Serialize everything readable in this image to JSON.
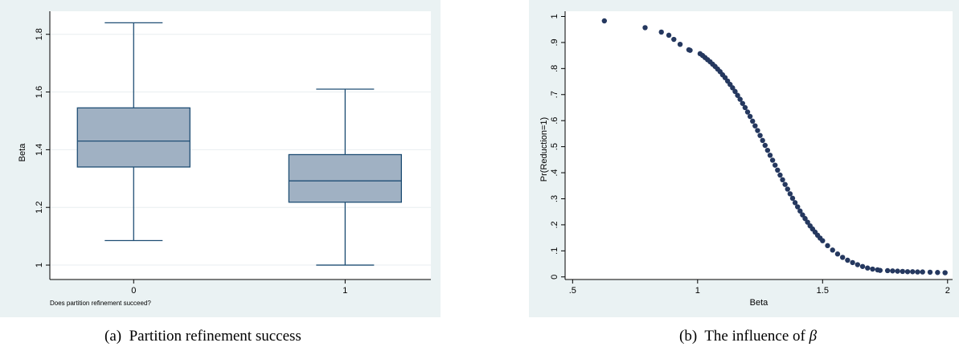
{
  "colors": {
    "background": "#ffffff",
    "plot_area": "#ffffff",
    "outer_region": "#eaf2f3",
    "box_fill": "#a0b1c3",
    "box_stroke": "#1f4e74",
    "marker": "#25385f",
    "grid": "#e8eef0",
    "axis": "#000000"
  },
  "captions": {
    "a_label": "(a)",
    "a_text": "Partition refinement success",
    "b_label": "(b)",
    "b_text_prefix": "The influence of",
    "b_symbol": "β"
  },
  "chart_data": [
    {
      "type": "box",
      "title": "",
      "xlabel": "Does partition refinement succeed?",
      "ylabel": "Beta",
      "categories": [
        "0",
        "1"
      ],
      "x_tick_labels": [
        "0",
        "1"
      ],
      "y_ticks": [
        1,
        1.2,
        1.4,
        1.6,
        1.8
      ],
      "y_tick_labels": [
        "1",
        "1.2",
        "1.4",
        "1.6",
        "1.8"
      ],
      "ylim": [
        0.95,
        1.88
      ],
      "grid": true,
      "boxes": [
        {
          "category": "0",
          "whisker_low": 1.085,
          "q1": 1.34,
          "median": 1.43,
          "q3": 1.545,
          "whisker_high": 1.84
        },
        {
          "category": "1",
          "whisker_low": 1.0,
          "q1": 1.218,
          "median": 1.292,
          "q3": 1.383,
          "whisker_high": 1.61
        }
      ]
    },
    {
      "type": "scatter",
      "title": "",
      "xlabel": "Beta",
      "ylabel": "Pr(Reduction=1)",
      "x_ticks": [
        0.5,
        1,
        1.5,
        2
      ],
      "x_tick_labels": [
        ".5",
        "1",
        "1.5",
        "2"
      ],
      "y_ticks": [
        0,
        0.1,
        0.2,
        0.3,
        0.4,
        0.5,
        0.6,
        0.7,
        0.8,
        0.9,
        1
      ],
      "y_tick_labels": [
        "0",
        ".1",
        ".2",
        ".3",
        ".4",
        ".5",
        ".6",
        ".7",
        ".8",
        ".9",
        "1"
      ],
      "xlim": [
        0.47,
        2.02
      ],
      "ylim": [
        -0.01,
        1.02
      ],
      "grid": false,
      "points": [
        [
          0.627,
          0.983
        ],
        [
          0.79,
          0.957
        ],
        [
          0.855,
          0.94
        ],
        [
          0.885,
          0.928
        ],
        [
          0.905,
          0.912
        ],
        [
          0.93,
          0.893
        ],
        [
          0.965,
          0.872
        ],
        [
          0.97,
          0.87
        ],
        [
          1.01,
          0.857
        ],
        [
          1.02,
          0.85
        ],
        [
          1.03,
          0.842
        ],
        [
          1.04,
          0.834
        ],
        [
          1.05,
          0.826
        ],
        [
          1.06,
          0.817
        ],
        [
          1.07,
          0.808
        ],
        [
          1.08,
          0.798
        ],
        [
          1.09,
          0.788
        ],
        [
          1.1,
          0.776
        ],
        [
          1.11,
          0.765
        ],
        [
          1.12,
          0.752
        ],
        [
          1.13,
          0.739
        ],
        [
          1.14,
          0.726
        ],
        [
          1.15,
          0.712
        ],
        [
          1.16,
          0.697
        ],
        [
          1.17,
          0.682
        ],
        [
          1.18,
          0.666
        ],
        [
          1.19,
          0.65
        ],
        [
          1.2,
          0.633
        ],
        [
          1.21,
          0.616
        ],
        [
          1.22,
          0.598
        ],
        [
          1.23,
          0.58
        ],
        [
          1.24,
          0.562
        ],
        [
          1.25,
          0.543
        ],
        [
          1.26,
          0.524
        ],
        [
          1.27,
          0.505
        ],
        [
          1.28,
          0.486
        ],
        [
          1.29,
          0.467
        ],
        [
          1.3,
          0.448
        ],
        [
          1.31,
          0.429
        ],
        [
          1.32,
          0.41
        ],
        [
          1.33,
          0.391
        ],
        [
          1.34,
          0.373
        ],
        [
          1.35,
          0.355
        ],
        [
          1.36,
          0.337
        ],
        [
          1.37,
          0.319
        ],
        [
          1.38,
          0.302
        ],
        [
          1.39,
          0.285
        ],
        [
          1.4,
          0.269
        ],
        [
          1.41,
          0.253
        ],
        [
          1.42,
          0.238
        ],
        [
          1.43,
          0.224
        ],
        [
          1.44,
          0.21
        ],
        [
          1.45,
          0.196
        ],
        [
          1.46,
          0.184
        ],
        [
          1.47,
          0.172
        ],
        [
          1.48,
          0.16
        ],
        [
          1.49,
          0.149
        ],
        [
          1.5,
          0.139
        ],
        [
          1.52,
          0.12
        ],
        [
          1.54,
          0.103
        ],
        [
          1.56,
          0.088
        ],
        [
          1.58,
          0.075
        ],
        [
          1.6,
          0.064
        ],
        [
          1.62,
          0.055
        ],
        [
          1.64,
          0.047
        ],
        [
          1.66,
          0.04
        ],
        [
          1.68,
          0.034
        ],
        [
          1.7,
          0.03
        ],
        [
          1.72,
          0.027
        ],
        [
          1.73,
          0.025
        ],
        [
          1.76,
          0.024
        ],
        [
          1.78,
          0.023
        ],
        [
          1.8,
          0.022
        ],
        [
          1.82,
          0.021
        ],
        [
          1.84,
          0.02
        ],
        [
          1.86,
          0.02
        ],
        [
          1.88,
          0.019
        ],
        [
          1.9,
          0.019
        ],
        [
          1.93,
          0.018
        ],
        [
          1.96,
          0.017
        ],
        [
          1.99,
          0.016
        ]
      ]
    }
  ]
}
